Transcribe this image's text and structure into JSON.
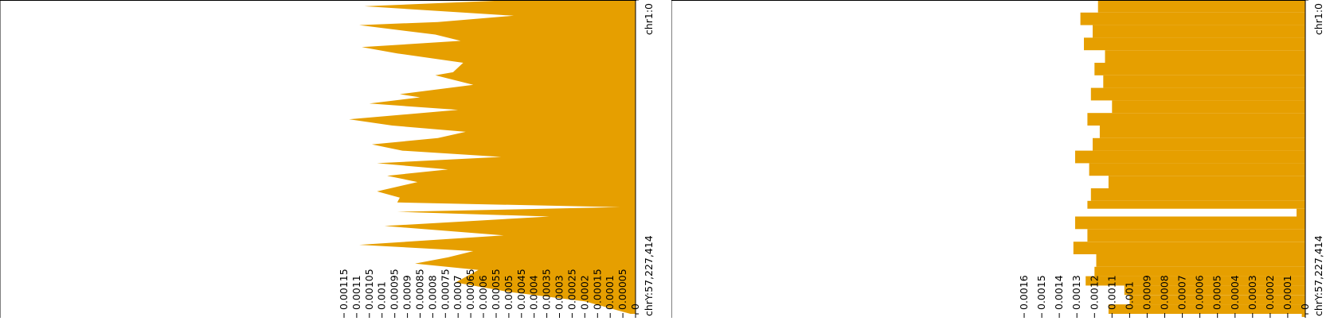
{
  "colors": {
    "fill": "#E69F00",
    "axis": "#000000",
    "background": "#FFFFFF"
  },
  "chart_data": [
    {
      "type": "area",
      "orientation": "rotated",
      "genome_axis": {
        "start_label": "chr1:0",
        "end_label": "chrY:57,227,414"
      },
      "value_axis": {
        "range": [
          0,
          0.00115
        ],
        "tick_labels": [
          "0",
          "0.00005",
          "0.0001",
          "0.00015",
          "0.0002",
          "0.00025",
          "0.0003",
          "0.00035",
          "0.0004",
          "0.00045",
          "0.0005",
          "0.00055",
          "0.0006",
          "0.00065",
          "0.0007",
          "0.00075",
          "0.0008",
          "0.00085",
          "0.0009",
          "0.00095",
          "0.001",
          "0.00105",
          "0.0011",
          "0.00115"
        ],
        "tick_values": [
          0,
          5e-05,
          0.0001,
          0.00015,
          0.0002,
          0.00025,
          0.0003,
          0.00035,
          0.0004,
          0.00045,
          0.0005,
          0.00055,
          0.0006,
          0.00065,
          0.0007,
          0.00075,
          0.0008,
          0.00085,
          0.0009,
          0.00095,
          0.001,
          0.00105,
          0.0011,
          0.00115
        ]
      },
      "positions": [
        0.0,
        0.02,
        0.05,
        0.07,
        0.08,
        0.11,
        0.13,
        0.15,
        0.17,
        0.2,
        0.23,
        0.24,
        0.27,
        0.3,
        0.31,
        0.33,
        0.35,
        0.38,
        0.4,
        0.42,
        0.44,
        0.46,
        0.48,
        0.5,
        0.52,
        0.54,
        0.56,
        0.58,
        0.61,
        0.63,
        0.645,
        0.66,
        0.675,
        0.69,
        0.72,
        0.75,
        0.78,
        0.8,
        0.82,
        0.84,
        0.86,
        0.9,
        0.93,
        0.96,
        1.0
      ],
      "values": [
        0.00048,
        0.00107,
        0.00048,
        0.00078,
        0.00109,
        0.00079,
        0.00069,
        0.00108,
        0.00094,
        0.00068,
        0.00072,
        0.00079,
        0.00064,
        0.00093,
        0.00085,
        0.00105,
        0.0007,
        0.00113,
        0.00096,
        0.00067,
        0.00078,
        0.00104,
        0.00092,
        0.00053,
        0.00102,
        0.00074,
        0.00098,
        0.00086,
        0.00102,
        0.00093,
        0.00094,
        6e-05,
        0.00094,
        0.00034,
        0.00099,
        0.00052,
        0.00109,
        0.00064,
        0.00074,
        0.00087,
        0.00062,
        0.00071,
        0.0005,
        0.0002,
        2e-05
      ]
    },
    {
      "type": "bar",
      "orientation": "rotated",
      "genome_axis": {
        "start_label": "chr1:0",
        "end_label": "chrY:57,227,414"
      },
      "value_axis": {
        "range": [
          0,
          0.0016
        ],
        "tick_labels": [
          "0",
          "0.0001",
          "0.0002",
          "0.0003",
          "0.0004",
          "0.0005",
          "0.0006",
          "0.0007",
          "0.0008",
          "0.0009",
          "0.001",
          "0.0011",
          "0.0012",
          "0.0013",
          "0.0014",
          "0.0015",
          "0.0016"
        ],
        "tick_values": [
          0,
          0.0001,
          0.0002,
          0.0003,
          0.0004,
          0.0005,
          0.0006,
          0.0007,
          0.0008,
          0.0009,
          0.001,
          0.0011,
          0.0012,
          0.0013,
          0.0014,
          0.0015,
          0.0016
        ]
      },
      "positions": [
        0.0,
        0.04,
        0.08,
        0.12,
        0.16,
        0.2,
        0.24,
        0.28,
        0.32,
        0.36,
        0.4,
        0.44,
        0.48,
        0.52,
        0.56,
        0.6,
        0.64,
        0.665,
        0.69,
        0.73,
        0.77,
        0.81,
        0.85,
        0.88,
        0.91,
        0.94,
        0.97,
        1.0
      ],
      "values": [
        0.00118,
        0.00128,
        0.00121,
        0.00126,
        0.00114,
        0.0012,
        0.00115,
        0.00122,
        0.0011,
        0.00124,
        0.00117,
        0.00121,
        0.00131,
        0.00123,
        0.00112,
        0.00122,
        0.00124,
        5e-05,
        0.00131,
        0.00124,
        0.00132,
        0.00119,
        0.0012,
        0.00125,
        0.00103,
        0.001,
        0.00112,
        2e-05
      ]
    }
  ]
}
